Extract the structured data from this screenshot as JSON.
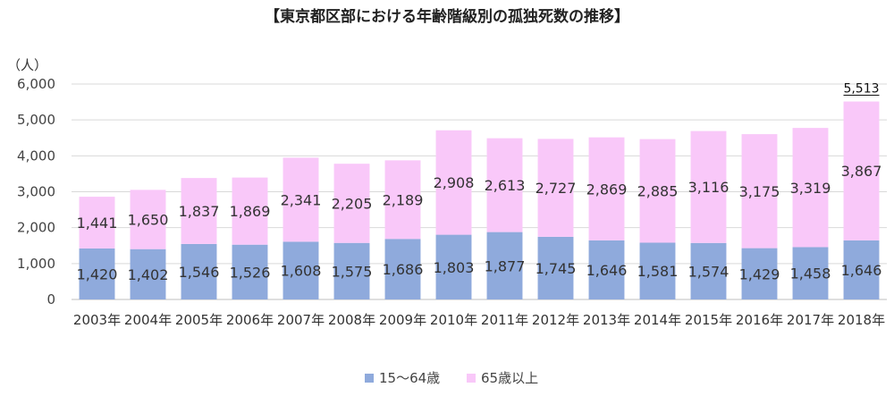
{
  "chart_data": {
    "type": "bar",
    "stacked": true,
    "title": "【東京都区部における年齢階級別の孤独死数の推移】",
    "ylabel": "（人）",
    "ylim": [
      0,
      6000
    ],
    "yticks": [
      "0",
      "1,000",
      "2,000",
      "3,000",
      "4,000",
      "5,000",
      "6,000"
    ],
    "ytick_values": [
      0,
      1000,
      2000,
      3000,
      4000,
      5000,
      6000
    ],
    "grid": true,
    "legend_position": "bottom",
    "categories": [
      "2003年",
      "2004年",
      "2005年",
      "2006年",
      "2007年",
      "2008年",
      "2009年",
      "2010年",
      "2011年",
      "2012年",
      "2013年",
      "2014年",
      "2015年",
      "2016年",
      "2017年",
      "2018年"
    ],
    "series": [
      {
        "name": "15～64歳",
        "color": "#8faadc",
        "values": [
          1420,
          1402,
          1546,
          1526,
          1608,
          1575,
          1686,
          1803,
          1877,
          1745,
          1646,
          1581,
          1574,
          1429,
          1458,
          1646
        ],
        "labels": [
          "1,420",
          "1,402",
          "1,546",
          "1,526",
          "1,608",
          "1,575",
          "1,686",
          "1,803",
          "1,877",
          "1,745",
          "1,646",
          "1,581",
          "1,574",
          "1,429",
          "1,458",
          "1,646"
        ]
      },
      {
        "name": "65歳以上",
        "color": "#f9c8f9",
        "values": [
          1441,
          1650,
          1837,
          1869,
          2341,
          2205,
          2189,
          2908,
          2613,
          2727,
          2869,
          2885,
          3116,
          3175,
          3319,
          3867
        ],
        "labels": [
          "1,441",
          "1,650",
          "1,837",
          "1,869",
          "2,341",
          "2,205",
          "2,189",
          "2,908",
          "2,613",
          "2,727",
          "2,869",
          "2,885",
          "3,116",
          "3,175",
          "3,319",
          "3,867"
        ]
      }
    ],
    "annotations": [
      {
        "category": "2018年",
        "value": 5513,
        "text": "5,513"
      }
    ],
    "colors": {
      "grid": "#d9d9d9",
      "axis": "#bfbfbf"
    }
  }
}
